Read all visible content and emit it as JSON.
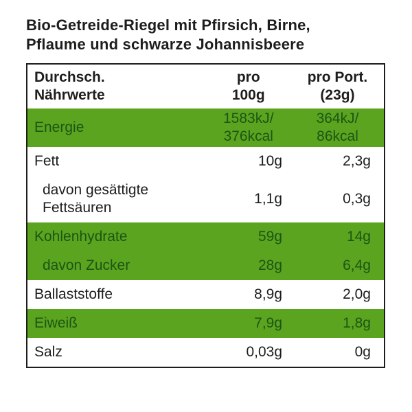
{
  "title": {
    "text": "Bio-Getreide-Riegel mit Pfirsich, Birne,\nPflaume und schwarze Johannisbeere"
  },
  "colors": {
    "green_row_bg": "#5aa41f",
    "green_row_text": "#1d5514",
    "text": "#1d1d1b",
    "border": "#1d1d1b",
    "background": "#ffffff"
  },
  "table": {
    "header": {
      "nutrients_label": "Durchsch.\nNährwerte",
      "per_100g_label": "pro\n100g",
      "per_portion_label": "pro Port.\n(23g)"
    },
    "rows": [
      {
        "label": "Energie",
        "per_100g": "1583kJ/\n376kcal",
        "per_portion": "364kJ/\n86kcal",
        "highlight": true,
        "indent": false,
        "value_align": "center"
      },
      {
        "label": "Fett",
        "per_100g": "10g",
        "per_portion": "2,3g",
        "highlight": false,
        "indent": false,
        "value_align": "right"
      },
      {
        "label": "davon gesättigte\nFettsäuren",
        "per_100g": "1,1g",
        "per_portion": "0,3g",
        "highlight": false,
        "indent": true,
        "value_align": "right"
      },
      {
        "label": "Kohlenhydrate",
        "per_100g": "59g",
        "per_portion": "14g",
        "highlight": true,
        "indent": false,
        "value_align": "right"
      },
      {
        "label": "davon Zucker",
        "per_100g": "28g",
        "per_portion": "6,4g",
        "highlight": true,
        "indent": true,
        "value_align": "right"
      },
      {
        "label": "Ballaststoffe",
        "per_100g": "8,9g",
        "per_portion": "2,0g",
        "highlight": false,
        "indent": false,
        "value_align": "right"
      },
      {
        "label": "Eiweiß",
        "per_100g": "7,9g",
        "per_portion": "1,8g",
        "highlight": true,
        "indent": false,
        "value_align": "right"
      },
      {
        "label": "Salz",
        "per_100g": "0,03g",
        "per_portion": "0g",
        "highlight": false,
        "indent": false,
        "value_align": "right"
      }
    ]
  }
}
